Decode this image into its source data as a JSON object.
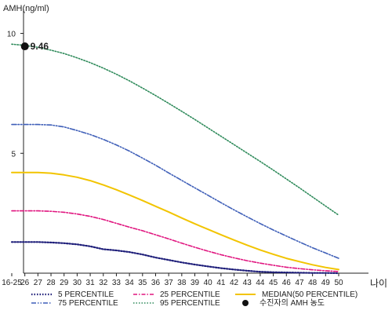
{
  "chart_data": {
    "type": "line",
    "ylabel": "AMH(ng/ml)",
    "xlabel": "나이",
    "ylim": [
      0,
      11
    ],
    "yticks": [
      5,
      10
    ],
    "categories": [
      "16-25",
      "26",
      "27",
      "28",
      "29",
      "30",
      "31",
      "32",
      "33",
      "34",
      "35",
      "36",
      "37",
      "38",
      "39",
      "40",
      "41",
      "42",
      "43",
      "44",
      "45",
      "46",
      "47",
      "48",
      "49",
      "50"
    ],
    "series": [
      {
        "name": "5 PERCENTILE",
        "color": "#1f1f7a",
        "dash": "1.5 2",
        "width": 2.2,
        "values": [
          1.3,
          1.3,
          1.3,
          1.28,
          1.25,
          1.2,
          1.12,
          1.0,
          0.95,
          0.88,
          0.78,
          0.65,
          0.55,
          0.45,
          0.36,
          0.28,
          0.21,
          0.15,
          0.1,
          0.06,
          0.04,
          0.03,
          0.02,
          0.01,
          0.01,
          0.0
        ]
      },
      {
        "name": "25 PERCENTILE",
        "color": "#e0157f",
        "dash": "5 2 1.5 2",
        "width": 1.6,
        "values": [
          2.6,
          2.6,
          2.6,
          2.58,
          2.54,
          2.47,
          2.37,
          2.24,
          2.08,
          1.92,
          1.77,
          1.6,
          1.43,
          1.25,
          1.08,
          0.92,
          0.77,
          0.64,
          0.52,
          0.42,
          0.33,
          0.25,
          0.19,
          0.14,
          0.1,
          0.07
        ]
      },
      {
        "name": "MEDIAN(50 PERCENTILE)",
        "color": "#f2c400",
        "dash": "",
        "width": 2,
        "values": [
          4.2,
          4.2,
          4.2,
          4.17,
          4.1,
          4.0,
          3.86,
          3.68,
          3.48,
          3.26,
          3.03,
          2.79,
          2.55,
          2.3,
          2.06,
          1.83,
          1.6,
          1.38,
          1.17,
          0.97,
          0.79,
          0.62,
          0.48,
          0.35,
          0.24,
          0.15
        ]
      },
      {
        "name": "75 PERCENTILE",
        "color": "#3f5fb8",
        "dash": "6 2 1.5 2 1.5 2",
        "width": 1.6,
        "values": [
          6.2,
          6.2,
          6.2,
          6.18,
          6.1,
          5.95,
          5.78,
          5.58,
          5.35,
          5.09,
          4.8,
          4.5,
          4.18,
          3.87,
          3.56,
          3.25,
          2.94,
          2.64,
          2.35,
          2.07,
          1.8,
          1.55,
          1.3,
          1.06,
          0.84,
          0.62
        ]
      },
      {
        "name": "95 PERCENTILE",
        "color": "#2e8a5a",
        "dash": "1.5 2",
        "width": 1.6,
        "values": [
          9.55,
          9.5,
          9.42,
          9.3,
          9.16,
          8.98,
          8.78,
          8.55,
          8.3,
          8.02,
          7.72,
          7.41,
          7.08,
          6.75,
          6.41,
          6.06,
          5.71,
          5.36,
          5.01,
          4.66,
          4.3,
          3.93,
          3.56,
          3.18,
          2.8,
          2.42
        ]
      }
    ],
    "marker": {
      "name": "수진자의 AMH 농도",
      "category": "26",
      "value": 9.46,
      "label": "9.46",
      "color": "#111111"
    },
    "legend_position": "bottom",
    "grid": false
  }
}
